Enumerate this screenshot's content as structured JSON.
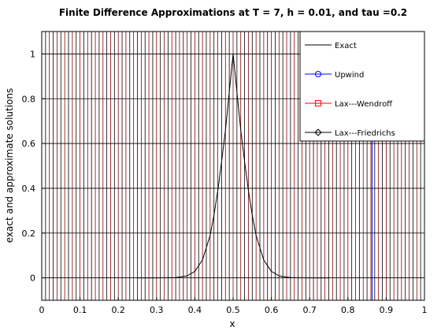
{
  "chart_data": {
    "type": "line",
    "title": "Finite Difference Approximations at T = 7, h = 0.01, and tau =0.2",
    "xlabel": "x",
    "ylabel": "exact and approximate solutions",
    "xlim": [
      0,
      1
    ],
    "ylim": [
      -0.1,
      1.1
    ],
    "xticks": [
      "0",
      "0.1",
      "0.2",
      "0.3",
      "0.4",
      "0.5",
      "0.6",
      "0.7",
      "0.8",
      "0.9",
      "1"
    ],
    "yticks": [
      "0",
      "0.2",
      "0.4",
      "0.6",
      "0.8",
      "1"
    ],
    "grid": true,
    "legend_position": "top-right",
    "series": [
      {
        "name": "Exact",
        "color": "#000000",
        "marker": "none"
      },
      {
        "name": "Upwind",
        "color": "#0000ff",
        "marker": "circle"
      },
      {
        "name": "Lax---Wendroff",
        "color": "#ff0000",
        "marker": "square"
      },
      {
        "name": "Lax---Friedrichs",
        "color": "#000000",
        "marker": "diamond"
      }
    ],
    "exact_curve": {
      "center": 0.5,
      "amplitude": 1,
      "x": [
        0.25,
        0.3,
        0.35,
        0.38,
        0.4,
        0.42,
        0.44,
        0.45,
        0.46,
        0.47,
        0.48,
        0.49,
        0.5,
        0.51,
        0.52,
        0.53,
        0.54,
        0.55,
        0.56,
        0.58,
        0.6,
        0.62,
        0.65,
        0.7,
        0.75
      ],
      "y": [
        0,
        0,
        0.001,
        0.009,
        0.029,
        0.08,
        0.19,
        0.28,
        0.39,
        0.52,
        0.66,
        0.83,
        1.0,
        0.83,
        0.66,
        0.52,
        0.39,
        0.28,
        0.19,
        0.08,
        0.029,
        0.009,
        0.001,
        0,
        0
      ]
    },
    "vertical_line_families": [
      {
        "color": "#8b0000",
        "x_start": 0,
        "x_end": 1,
        "step": 0.02
      },
      {
        "color": "#000000",
        "x_start": 0.01,
        "x_end": 1,
        "step": 0.02
      }
    ],
    "blue_line_x": 0.863
  }
}
